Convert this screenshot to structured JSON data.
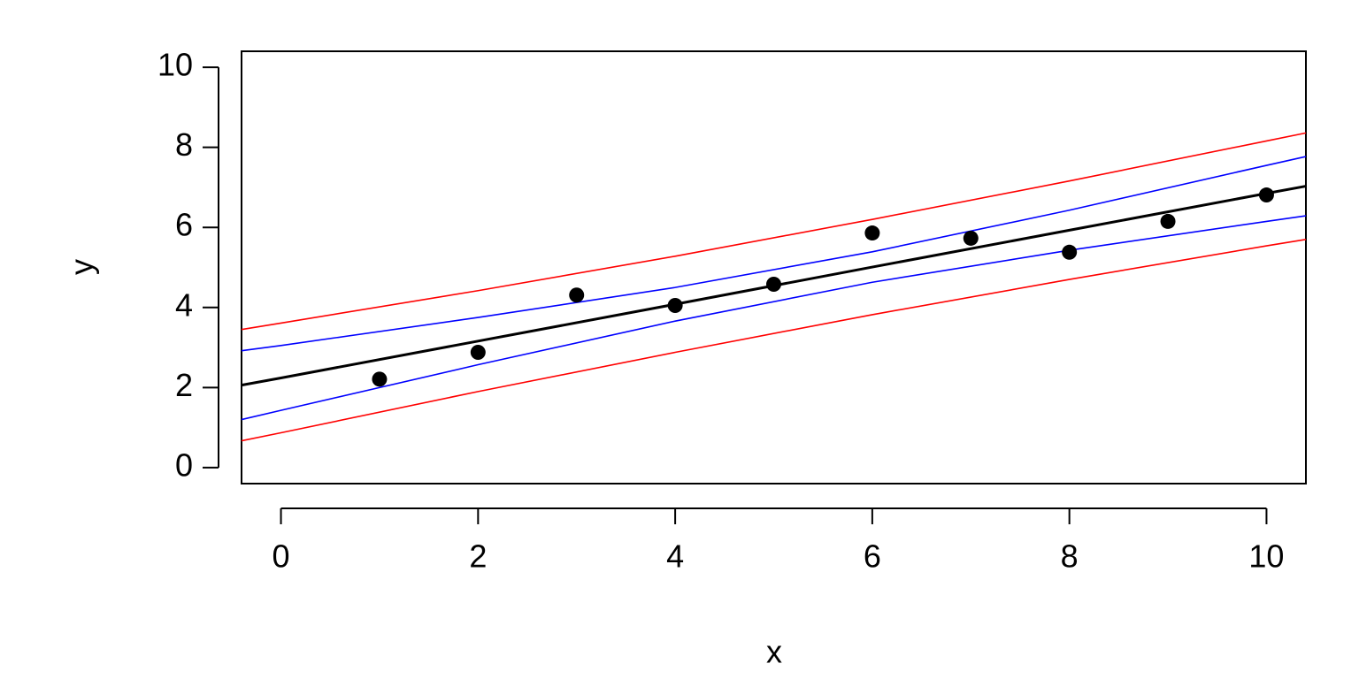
{
  "chart_data": {
    "type": "scatter",
    "x_label": "x",
    "y_label": "y",
    "xlim": [
      -0.4,
      10.4
    ],
    "ylim": [
      -0.4,
      10.4
    ],
    "xticks": [
      0,
      2,
      4,
      6,
      8,
      10
    ],
    "yticks": [
      0,
      2,
      4,
      6,
      8,
      10
    ],
    "points": {
      "color": "#000000",
      "x": [
        1,
        2,
        3,
        4,
        5,
        6,
        7,
        8,
        9,
        10
      ],
      "values": [
        2.21,
        2.88,
        4.31,
        4.05,
        4.58,
        5.86,
        5.73,
        5.38,
        6.15,
        6.81
      ]
    },
    "line_x": [
      -0.4,
      0,
      2,
      4,
      6,
      8,
      10,
      10.4
    ],
    "series": [
      {
        "color": "#ff0000",
        "values": [
          3.45,
          3.61,
          4.42,
          5.28,
          6.2,
          7.16,
          8.16,
          8.36
        ]
      },
      {
        "color": "#ff0000",
        "values": [
          0.67,
          0.87,
          1.9,
          2.88,
          3.82,
          4.7,
          5.54,
          5.7
        ]
      },
      {
        "color": "#0000ff",
        "values": [
          2.92,
          3.05,
          3.75,
          4.5,
          5.39,
          6.43,
          7.55,
          7.77
        ]
      },
      {
        "color": "#0000ff",
        "values": [
          1.2,
          1.43,
          2.57,
          3.66,
          4.63,
          5.43,
          6.15,
          6.29
        ]
      },
      {
        "color": "#000000",
        "width": 3,
        "values": [
          2.06,
          2.24,
          3.16,
          4.08,
          5.01,
          5.93,
          6.85,
          7.03
        ]
      }
    ]
  }
}
